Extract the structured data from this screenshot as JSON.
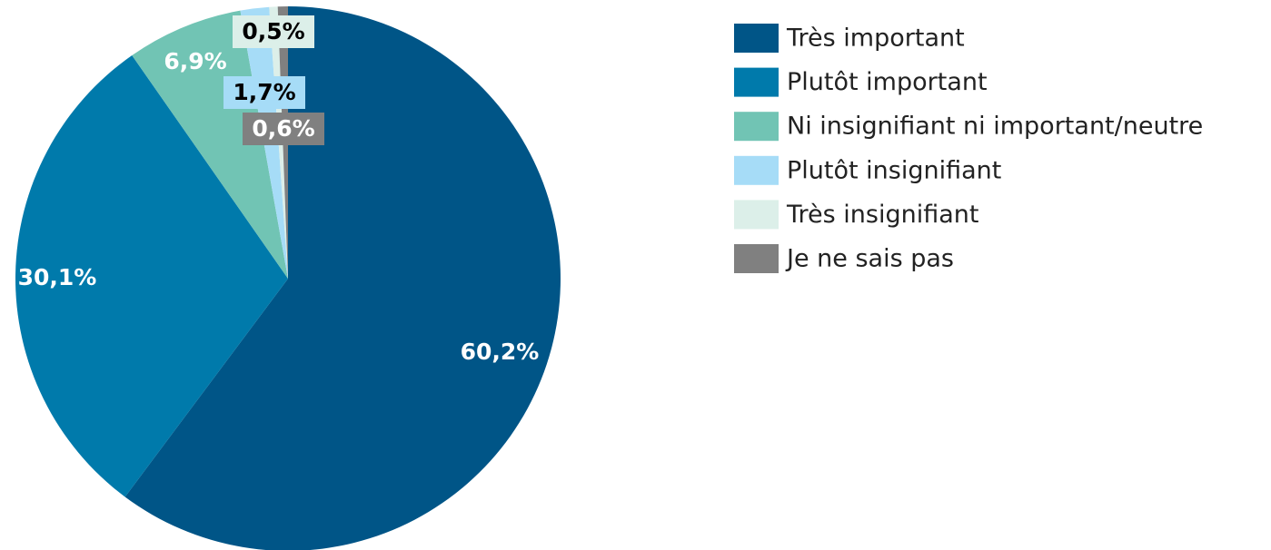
{
  "chart_data": {
    "type": "pie",
    "categories": [
      "Très important",
      "Plutôt important",
      "Ni insignifiant ni important/neutre",
      "Plutôt insignifiant",
      "Très insignifiant",
      "Je ne sais pas"
    ],
    "values": [
      60.2,
      30.1,
      6.9,
      1.7,
      0.5,
      0.6
    ],
    "value_labels": [
      "60,2%",
      "30,1%",
      "6,9%",
      "1,7%",
      "0,5%",
      "0,6%"
    ],
    "colors": [
      "#005587",
      "#007aab",
      "#71c4b4",
      "#a6dcf7",
      "#dcefe9",
      "#808080"
    ],
    "legend": "right"
  }
}
